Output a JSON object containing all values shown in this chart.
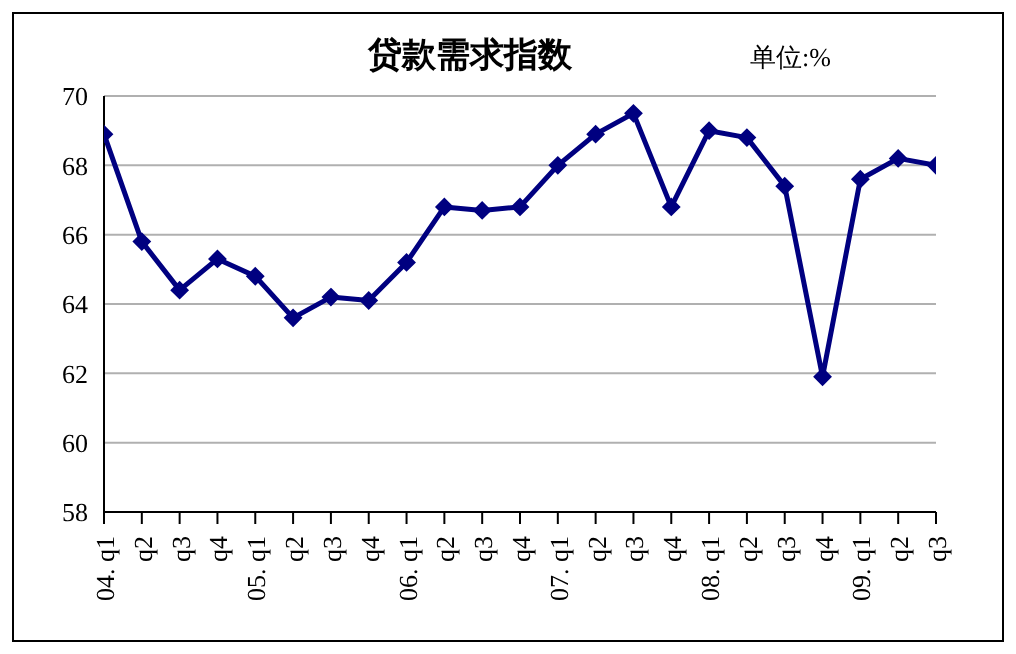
{
  "chart_data": {
    "type": "line",
    "title": "贷款需求指数",
    "annotations": [
      "单位:%"
    ],
    "categories": [
      "04. q1",
      "q2",
      "q3",
      "q4",
      "05. q1",
      "q2",
      "q3",
      "q4",
      "06. q1",
      "q2",
      "q3",
      "q4",
      "07. q1",
      "q2",
      "q3",
      "q4",
      "08. q1",
      "q2",
      "q3",
      "q4",
      "09. q1",
      "q2",
      "q3"
    ],
    "series": [
      {
        "color": "#000080",
        "values": [
          68.9,
          65.8,
          64.4,
          65.3,
          64.8,
          63.6,
          64.2,
          64.1,
          65.2,
          66.8,
          66.7,
          66.8,
          68.0,
          68.9,
          69.5,
          66.8,
          69.0,
          68.8,
          67.4,
          61.9,
          67.6,
          68.2,
          68.0
        ]
      }
    ],
    "ylim": [
      58,
      70
    ],
    "yticks": [
      58,
      60,
      62,
      64,
      66,
      68,
      70
    ],
    "grid": "y",
    "marker": "diamond",
    "line_style": "solid"
  }
}
